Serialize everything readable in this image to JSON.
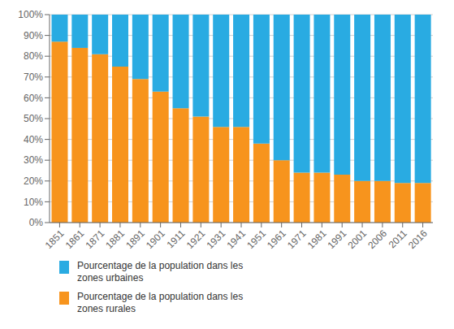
{
  "chart_data": {
    "type": "bar",
    "stacked": true,
    "categories": [
      "1851",
      "1861",
      "1871",
      "1881",
      "1891",
      "1901",
      "1911",
      "1921",
      "1931",
      "1941",
      "1951",
      "1961",
      "1971",
      "1981",
      "1991",
      "2001",
      "2006",
      "2011",
      "2016"
    ],
    "series": [
      {
        "name": "Pourcentage de la population dans les\nzones rurales",
        "color": "#F7941D",
        "values": [
          87,
          84,
          81,
          75,
          69,
          63,
          55,
          51,
          46,
          46,
          38,
          30,
          24,
          24,
          23,
          20,
          20,
          19,
          19
        ]
      },
      {
        "name": "Pourcentage de la population dans les\nzones urbaines",
        "color": "#29ABE2",
        "values": [
          13,
          16,
          19,
          25,
          31,
          37,
          45,
          49,
          54,
          54,
          62,
          70,
          76,
          76,
          77,
          80,
          80,
          81,
          81
        ]
      }
    ],
    "ylim": [
      0,
      100
    ],
    "yticks": [
      {
        "value": 0,
        "label": "0%"
      },
      {
        "value": 10,
        "label": "10%"
      },
      {
        "value": 20,
        "label": "20%"
      },
      {
        "value": 30,
        "label": "30%"
      },
      {
        "value": 40,
        "label": "40%"
      },
      {
        "value": 50,
        "label": "50%"
      },
      {
        "value": 60,
        "label": "60%"
      },
      {
        "value": 70,
        "label": "70%"
      },
      {
        "value": 80,
        "label": "80%"
      },
      {
        "value": 90,
        "label": "90%"
      },
      {
        "value": 100,
        "label": "100%"
      }
    ],
    "grid": true,
    "legend": "bottom"
  }
}
